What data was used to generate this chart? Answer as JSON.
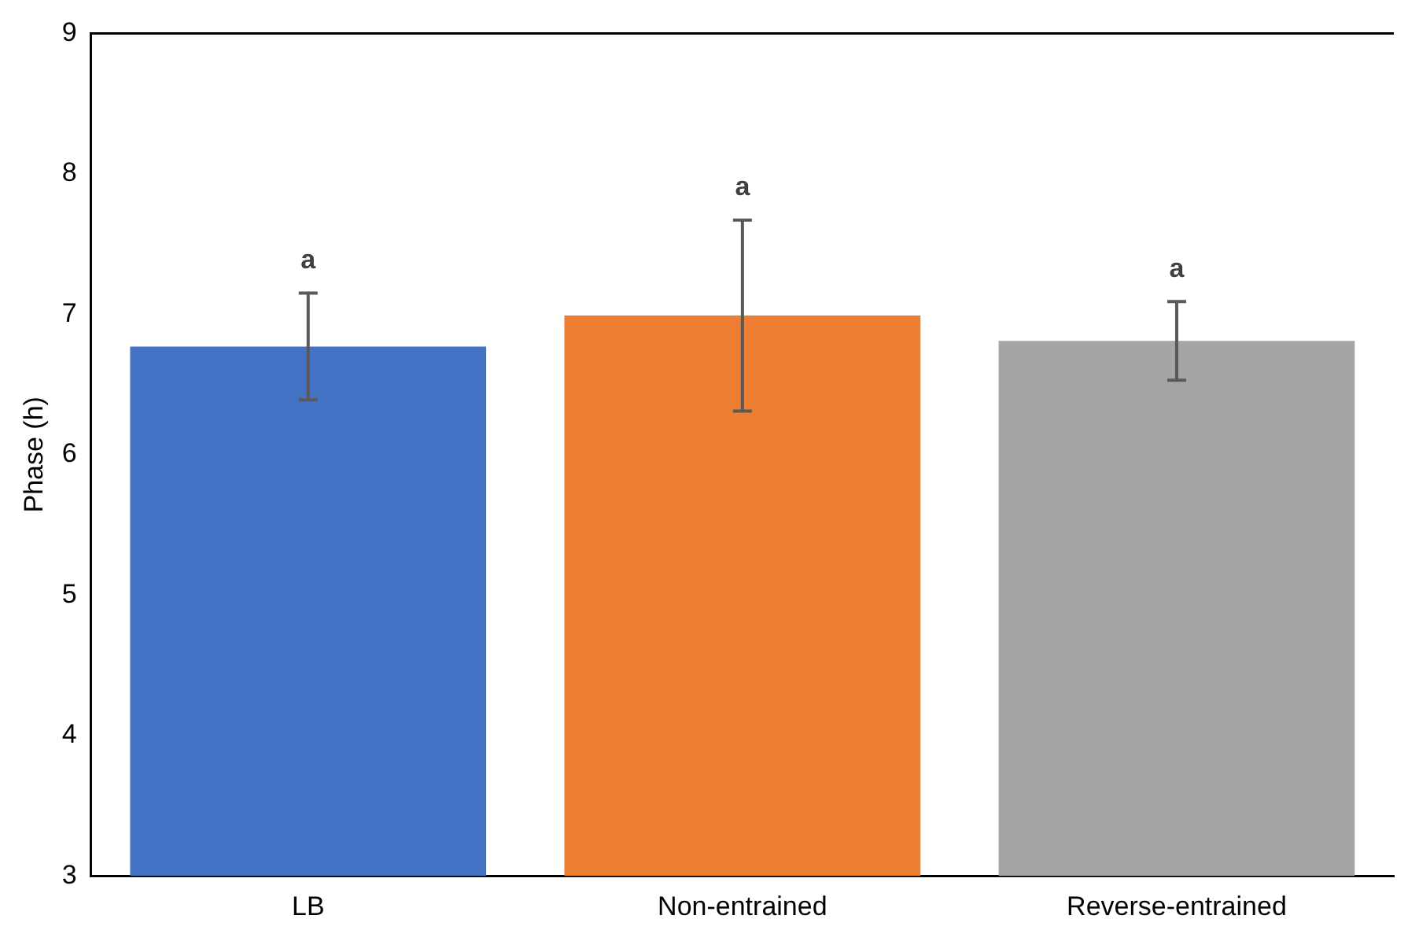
{
  "chart_data": {
    "type": "bar",
    "ylabel": "Phase (h)",
    "categories": [
      "LB",
      "Non-entrained",
      "Reverse-entrained"
    ],
    "values": [
      6.77,
      6.99,
      6.81
    ],
    "colors": [
      "#4472c4",
      "#ed7d31",
      "#a5a5a5"
    ],
    "errors": [
      0.38,
      0.68,
      0.28
    ],
    "ylim": [
      3,
      9
    ],
    "yticks": [
      3,
      4,
      5,
      6,
      7,
      8,
      9
    ],
    "grid": false,
    "legend": false,
    "annotations": [
      {
        "text": "a",
        "x": "LB",
        "y": 7.15
      },
      {
        "text": "a",
        "x": "Non-entrained",
        "y": 7.67
      },
      {
        "text": "a",
        "x": "Reverse-entrained",
        "y": 7.09
      }
    ]
  }
}
